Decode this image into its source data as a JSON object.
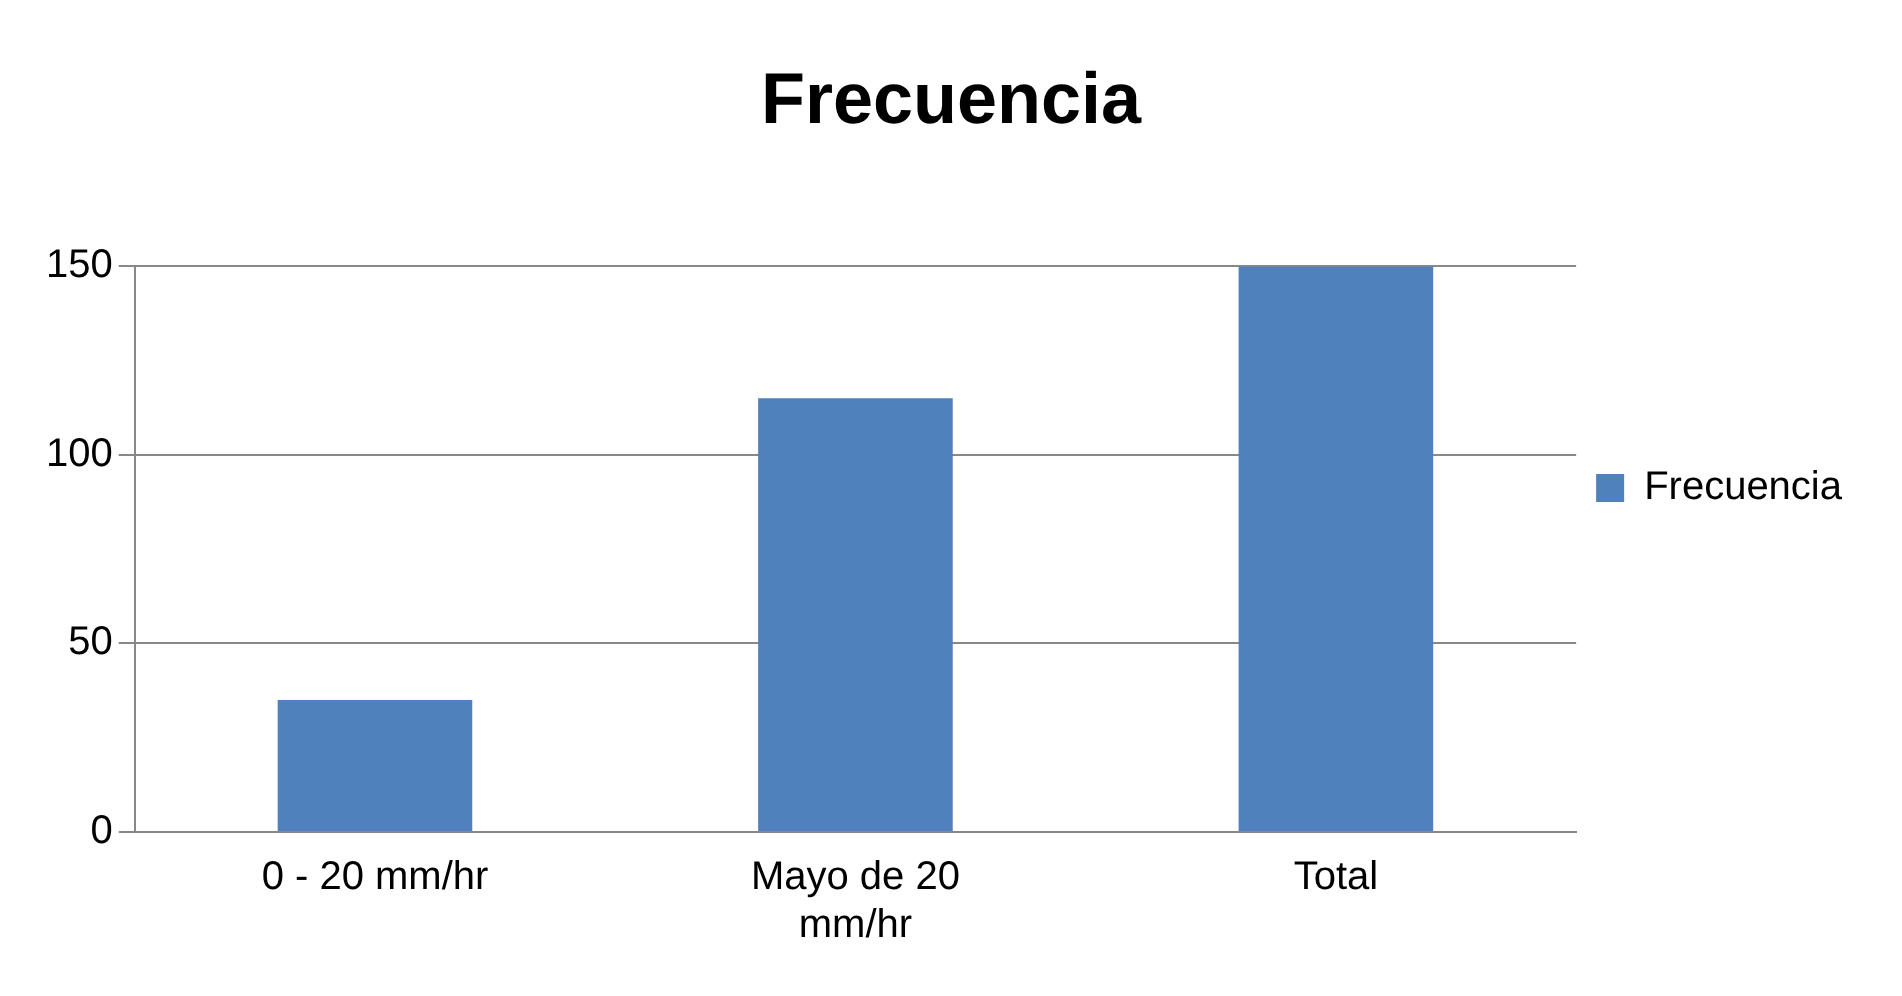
{
  "chart_data": {
    "type": "bar",
    "title": "Frecuencia",
    "categories": [
      [
        "0 - 20 mm/hr"
      ],
      [
        "Mayo de 20",
        "mm/hr"
      ],
      [
        "Total"
      ]
    ],
    "series": [
      {
        "name": "Frecuencia",
        "color": "#4f81bd",
        "values": [
          35,
          115,
          150
        ]
      }
    ],
    "ylim": [
      0,
      150
    ],
    "yticks": [
      0,
      50,
      100,
      150
    ],
    "grid": "y",
    "legend": "right"
  }
}
